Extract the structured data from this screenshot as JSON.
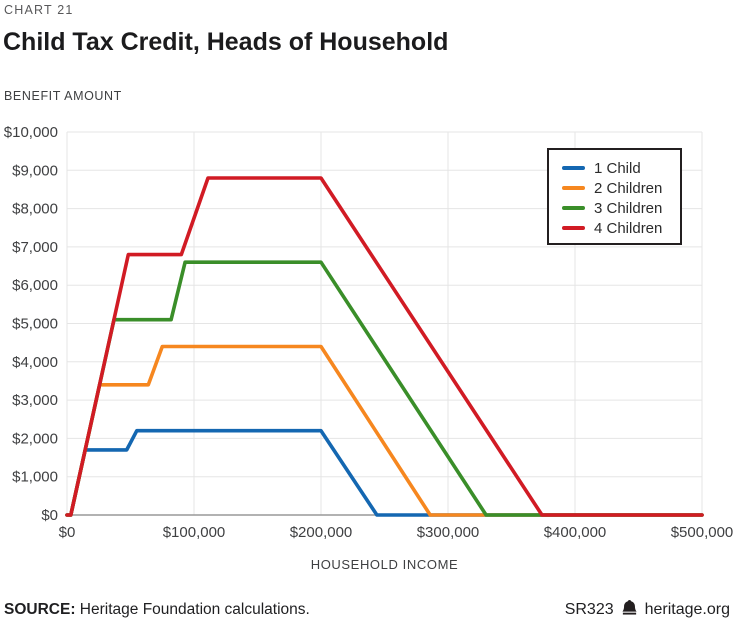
{
  "header": {
    "kicker": "CHART 21",
    "title": "Child Tax Credit, Heads of Household",
    "y_axis_title": "BENEFIT AMOUNT"
  },
  "footer": {
    "source_label": "SOURCE:",
    "source_text": "Heritage Foundation calculations.",
    "report_id": "SR323",
    "site": "heritage.org",
    "icon": "heritage-bell-icon"
  },
  "chart_data": {
    "type": "line",
    "title": "Child Tax Credit, Heads of Household",
    "xlabel": "HOUSEHOLD INCOME",
    "ylabel": "BENEFIT AMOUNT",
    "xlim": [
      0,
      500000
    ],
    "ylim": [
      0,
      10000
    ],
    "grid": true,
    "legend_position": "top-right",
    "x_ticks": [
      0,
      100000,
      200000,
      300000,
      400000,
      500000
    ],
    "x_tick_labels": [
      "$0",
      "$100,000",
      "$200,000",
      "$300,000",
      "$400,000",
      "$500,000"
    ],
    "y_ticks": [
      0,
      1000,
      2000,
      3000,
      4000,
      5000,
      6000,
      7000,
      8000,
      9000,
      10000
    ],
    "y_tick_labels": [
      "$0",
      "$1,000",
      "$2,000",
      "$3,000",
      "$4,000",
      "$5,000",
      "$6,000",
      "$7,000",
      "$8,000",
      "$9,000",
      "$10,000"
    ],
    "colors": {
      "grid": "#e5e5e5",
      "axis": "#999999",
      "tick_text": "#3f4042"
    },
    "series": [
      {
        "name": "1 Child",
        "color": "#1467b1",
        "points": [
          [
            0,
            0
          ],
          [
            3000,
            0
          ],
          [
            14300,
            1700
          ],
          [
            47000,
            1700
          ],
          [
            55000,
            2200
          ],
          [
            200000,
            2200
          ],
          [
            244000,
            0
          ],
          [
            500000,
            0
          ]
        ]
      },
      {
        "name": "2 Children",
        "color": "#f6871f",
        "points": [
          [
            0,
            0
          ],
          [
            3000,
            0
          ],
          [
            25700,
            3400
          ],
          [
            64000,
            3400
          ],
          [
            75000,
            4400
          ],
          [
            200000,
            4400
          ],
          [
            286000,
            0
          ],
          [
            500000,
            0
          ]
        ]
      },
      {
        "name": "3 Children",
        "color": "#3a8e29",
        "points": [
          [
            0,
            0
          ],
          [
            3000,
            0
          ],
          [
            37000,
            5100
          ],
          [
            82000,
            5100
          ],
          [
            93000,
            6600
          ],
          [
            200000,
            6600
          ],
          [
            330000,
            0
          ],
          [
            500000,
            0
          ]
        ]
      },
      {
        "name": "4 Children",
        "color": "#d11b24",
        "points": [
          [
            0,
            0
          ],
          [
            3000,
            0
          ],
          [
            48300,
            6800
          ],
          [
            90000,
            6800
          ],
          [
            111000,
            8800
          ],
          [
            200000,
            8800
          ],
          [
            374000,
            0
          ],
          [
            500000,
            0
          ]
        ]
      }
    ]
  }
}
